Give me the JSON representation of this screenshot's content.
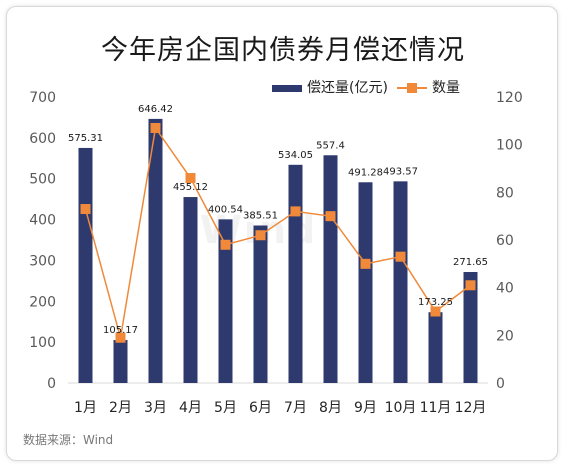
{
  "title": "今年房企国内债券月偿还情况",
  "source": "数据来源：Wind",
  "watermark": "Wind",
  "colors": {
    "bar": "#2e3a6e",
    "line": "#f08a3a",
    "axis_text": "#595959",
    "grid": "#d9d9d9"
  },
  "chart_data": {
    "type": "bar",
    "title": "今年房企国内债券月偿还情况",
    "categories": [
      "1月",
      "2月",
      "3月",
      "4月",
      "5月",
      "6月",
      "7月",
      "8月",
      "9月",
      "10月",
      "11月",
      "12月"
    ],
    "series": [
      {
        "name": "偿还量(亿元)",
        "type": "bar",
        "axis": "left",
        "values": [
          575.31,
          105.17,
          646.42,
          455.12,
          400.54,
          385.51,
          534.05,
          557.4,
          491.28,
          493.57,
          173.25,
          271.65
        ],
        "labels": [
          "575.31",
          "105.17",
          "646.42",
          "455.12",
          "400.54",
          "385.51",
          "534.05",
          "557.4",
          "491.28",
          "493.57",
          "173.25",
          "271.65"
        ]
      },
      {
        "name": "数量",
        "type": "line",
        "axis": "right",
        "marker": "square",
        "values": [
          73,
          19,
          107,
          86,
          58,
          62,
          72,
          70,
          50,
          53,
          30,
          41
        ]
      }
    ],
    "y_left": {
      "min": 0,
      "max": 700,
      "ticks": [
        "0",
        "100",
        "200",
        "300",
        "400",
        "500",
        "600",
        "700"
      ]
    },
    "y_right": {
      "min": 0,
      "max": 120,
      "ticks": [
        "0",
        "20",
        "40",
        "60",
        "80",
        "100",
        "120"
      ]
    },
    "grid": false,
    "legend": "top-right"
  }
}
